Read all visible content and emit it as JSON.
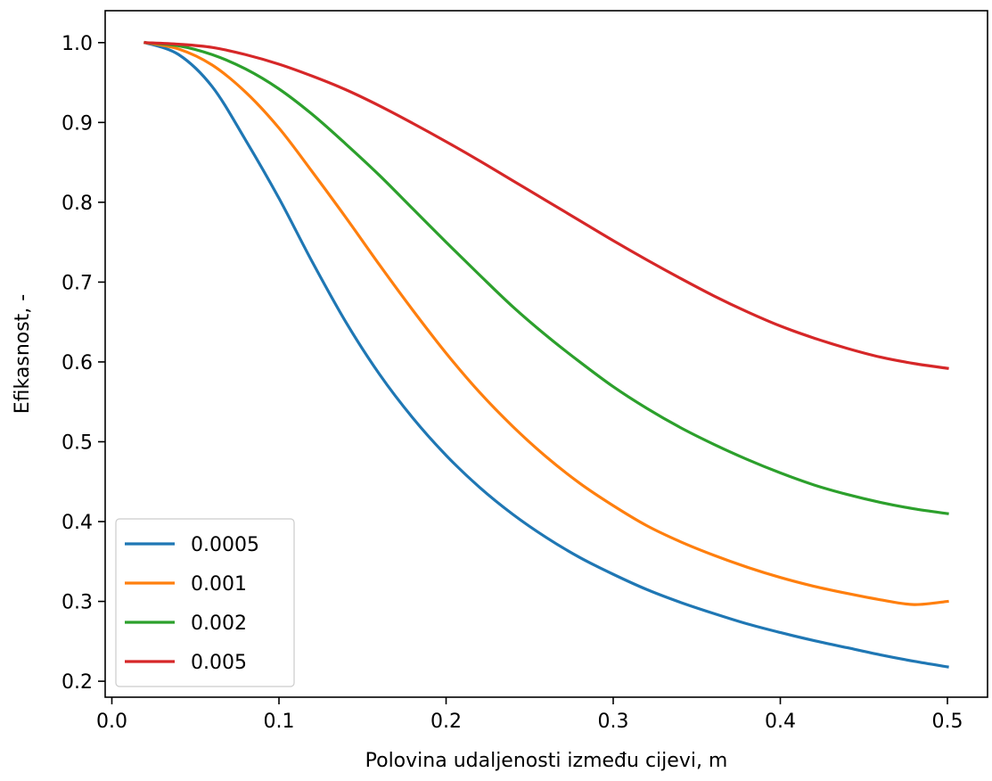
{
  "chart_data": {
    "type": "line",
    "title": "",
    "xlabel": "Polovina udaljenosti između cijevi, m",
    "ylabel": "Efikasnost, -",
    "xlim": [
      -0.004,
      0.524
    ],
    "ylim": [
      0.18,
      1.04
    ],
    "xticks": [
      0.0,
      0.1,
      0.2,
      0.3,
      0.4,
      0.5
    ],
    "xtick_labels": [
      "0.0",
      "0.1",
      "0.2",
      "0.3",
      "0.4",
      "0.5"
    ],
    "yticks": [
      0.2,
      0.3,
      0.4,
      0.5,
      0.6,
      0.7,
      0.8,
      0.9,
      1.0
    ],
    "ytick_labels": [
      "0.2",
      "0.3",
      "0.4",
      "0.5",
      "0.6",
      "0.7",
      "0.8",
      "0.9",
      "1.0"
    ],
    "grid": false,
    "legend": "lower-left",
    "x": [
      0.02,
      0.04,
      0.06,
      0.08,
      0.1,
      0.12,
      0.14,
      0.16,
      0.18,
      0.2,
      0.22,
      0.24,
      0.26,
      0.28,
      0.3,
      0.32,
      0.34,
      0.36,
      0.38,
      0.4,
      0.42,
      0.44,
      0.46,
      0.48,
      0.5
    ],
    "series": [
      {
        "name": "0.0005",
        "color": "#1f77b4",
        "values": [
          1.0,
          0.985,
          0.945,
          0.878,
          0.805,
          0.725,
          0.65,
          0.585,
          0.53,
          0.483,
          0.443,
          0.409,
          0.38,
          0.355,
          0.334,
          0.315,
          0.299,
          0.285,
          0.272,
          0.261,
          0.251,
          0.242,
          0.233,
          0.225,
          0.218
        ]
      },
      {
        "name": "0.001",
        "color": "#ff7f0e",
        "values": [
          1.0,
          0.992,
          0.972,
          0.938,
          0.893,
          0.838,
          0.781,
          0.722,
          0.665,
          0.611,
          0.562,
          0.519,
          0.481,
          0.448,
          0.42,
          0.395,
          0.375,
          0.358,
          0.343,
          0.33,
          0.319,
          0.31,
          0.302,
          0.296,
          0.3
        ]
      },
      {
        "name": "0.002",
        "color": "#2ca02c",
        "values": [
          1.0,
          0.996,
          0.985,
          0.967,
          0.942,
          0.91,
          0.873,
          0.834,
          0.792,
          0.75,
          0.709,
          0.669,
          0.633,
          0.6,
          0.569,
          0.542,
          0.518,
          0.497,
          0.478,
          0.461,
          0.446,
          0.434,
          0.424,
          0.416,
          0.41
        ]
      },
      {
        "name": "0.005",
        "color": "#d62728",
        "values": [
          1.0,
          0.998,
          0.994,
          0.985,
          0.973,
          0.958,
          0.941,
          0.921,
          0.899,
          0.876,
          0.852,
          0.827,
          0.802,
          0.777,
          0.752,
          0.728,
          0.705,
          0.683,
          0.663,
          0.645,
          0.63,
          0.617,
          0.606,
          0.598,
          0.592
        ]
      }
    ]
  }
}
